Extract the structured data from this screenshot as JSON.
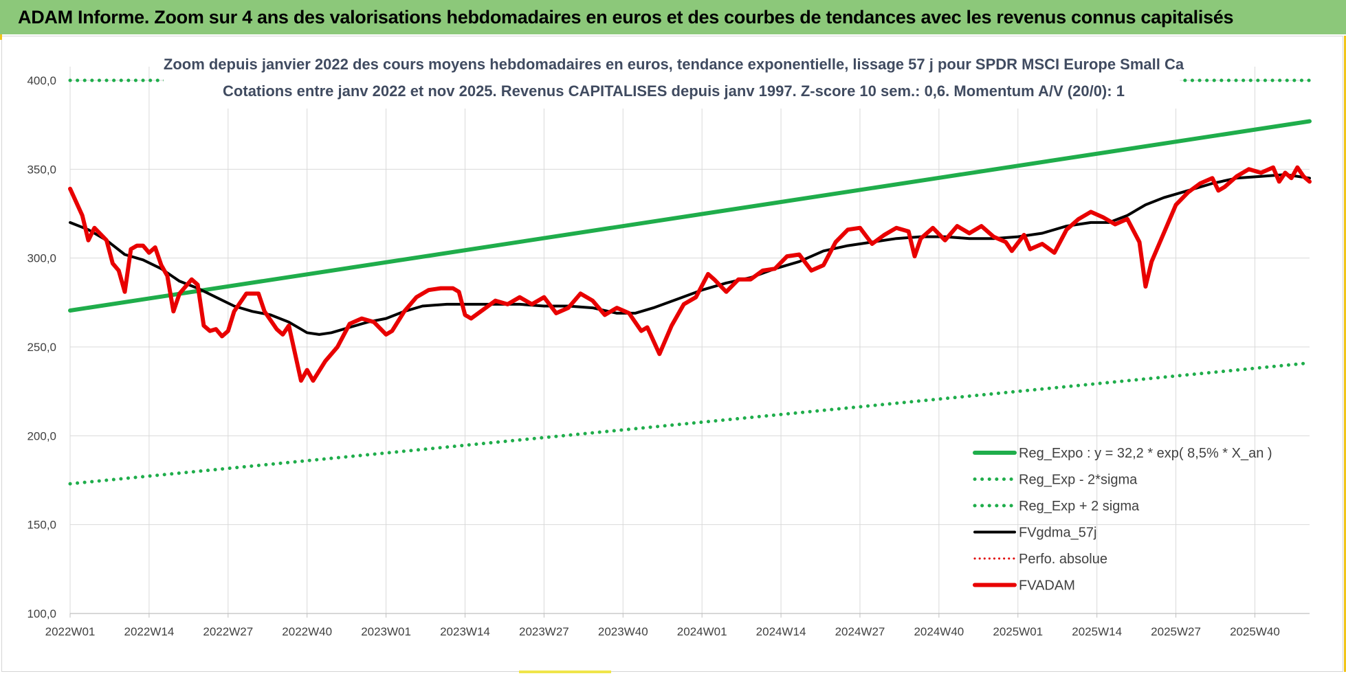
{
  "header": {
    "title": "ADAM Informe. Zoom sur 4 ans des valorisations hebdomadaires en euros et des courbes de tendances avec les revenus connus capitalisés"
  },
  "colors": {
    "banner": "#8cc87a",
    "reg_expo": "#1fad4b",
    "sigma_bands": "#1fad4b",
    "fvgdma": "#000000",
    "perfo": "#e00000",
    "fvadam": "#e80000"
  },
  "chart_data": {
    "type": "line",
    "title": "Zoom depuis janvier 2022 des cours moyens hebdomadaires en euros, tendance exponentielle, lissage 57 j pour SPDR MSCI Europe Small Ca",
    "subtitle": "Cotations entre janv 2022 et nov 2025. Revenus CAPITALISES depuis janv 1997. Z-score 10 sem.: 0,6. Momentum A/V (20/0): 1",
    "xlabel": "",
    "ylabel": "",
    "grid": true,
    "legend_position": "right",
    "ylim": [
      100,
      400
    ],
    "yticks": [
      "100,0",
      "150,0",
      "200,0",
      "250,0",
      "300,0",
      "350,0",
      "400,0"
    ],
    "x_range": [
      0,
      204
    ],
    "xticks": [
      {
        "week": 0,
        "label": "2022W01"
      },
      {
        "week": 13,
        "label": "2022W14"
      },
      {
        "week": 26,
        "label": "2022W27"
      },
      {
        "week": 39,
        "label": "2022W40"
      },
      {
        "week": 52,
        "label": "2023W01"
      },
      {
        "week": 65,
        "label": "2023W14"
      },
      {
        "week": 78,
        "label": "2023W27"
      },
      {
        "week": 91,
        "label": "2023W40"
      },
      {
        "week": 104,
        "label": "2024W01"
      },
      {
        "week": 117,
        "label": "2024W14"
      },
      {
        "week": 130,
        "label": "2024W27"
      },
      {
        "week": 143,
        "label": "2024W40"
      },
      {
        "week": 156,
        "label": "2025W01"
      },
      {
        "week": 169,
        "label": "2025W14"
      },
      {
        "week": 182,
        "label": "2025W27"
      },
      {
        "week": 195,
        "label": "2025W40"
      }
    ],
    "series": [
      {
        "name": "Reg_Expo : y = 32,2 * exp( 8,5% *  X_an )",
        "style": "solid-thick",
        "points": [
          [
            0,
            270.5
          ],
          [
            204,
            377
          ]
        ]
      },
      {
        "name": "Reg_Exp - 2*sigma",
        "style": "dotted",
        "points": [
          [
            0,
            173
          ],
          [
            204,
            241
          ]
        ]
      },
      {
        "name": "Reg_Exp + 2 sigma",
        "style": "dotted",
        "points": [
          [
            0,
            400
          ],
          [
            204,
            400
          ]
        ]
      },
      {
        "name": "FVgdma_57j",
        "style": "solid",
        "points": [
          [
            0,
            320
          ],
          [
            3,
            316
          ],
          [
            6,
            310
          ],
          [
            9,
            302
          ],
          [
            12,
            299
          ],
          [
            15,
            294
          ],
          [
            18,
            287
          ],
          [
            21,
            283
          ],
          [
            24,
            278
          ],
          [
            27,
            273
          ],
          [
            30,
            270
          ],
          [
            33,
            268
          ],
          [
            36,
            264
          ],
          [
            39,
            258
          ],
          [
            41,
            257
          ],
          [
            43,
            258
          ],
          [
            46,
            261
          ],
          [
            49,
            264
          ],
          [
            52,
            266
          ],
          [
            55,
            270
          ],
          [
            58,
            273
          ],
          [
            62,
            274
          ],
          [
            66,
            274
          ],
          [
            70,
            274
          ],
          [
            74,
            274
          ],
          [
            78,
            273
          ],
          [
            82,
            273
          ],
          [
            86,
            272
          ],
          [
            90,
            269
          ],
          [
            93,
            269
          ],
          [
            96,
            272
          ],
          [
            100,
            277
          ],
          [
            104,
            282
          ],
          [
            108,
            286
          ],
          [
            112,
            289
          ],
          [
            116,
            294
          ],
          [
            120,
            298
          ],
          [
            124,
            304
          ],
          [
            128,
            307
          ],
          [
            132,
            309
          ],
          [
            136,
            311
          ],
          [
            140,
            312
          ],
          [
            144,
            312
          ],
          [
            148,
            311
          ],
          [
            152,
            311
          ],
          [
            156,
            312
          ],
          [
            160,
            314
          ],
          [
            164,
            318
          ],
          [
            168,
            320
          ],
          [
            171,
            320
          ],
          [
            174,
            324
          ],
          [
            177,
            330
          ],
          [
            180,
            334
          ],
          [
            184,
            338
          ],
          [
            188,
            342
          ],
          [
            192,
            345
          ],
          [
            196,
            346
          ],
          [
            200,
            347
          ],
          [
            204,
            345
          ]
        ]
      },
      {
        "name": "Perfo. absolue",
        "style": "dotted",
        "points": []
      },
      {
        "name": "FVADAM",
        "style": "solid-thick",
        "points": [
          [
            0,
            339
          ],
          [
            2,
            324
          ],
          [
            3,
            310
          ],
          [
            4,
            317
          ],
          [
            6,
            310
          ],
          [
            7,
            297
          ],
          [
            8,
            293
          ],
          [
            9,
            281
          ],
          [
            10,
            305
          ],
          [
            11,
            307
          ],
          [
            12,
            307
          ],
          [
            13,
            303
          ],
          [
            14,
            306
          ],
          [
            15,
            296
          ],
          [
            16,
            290
          ],
          [
            17,
            270
          ],
          [
            18,
            280
          ],
          [
            20,
            288
          ],
          [
            21,
            285
          ],
          [
            22,
            262
          ],
          [
            23,
            259
          ],
          [
            24,
            260
          ],
          [
            25,
            256
          ],
          [
            26,
            259
          ],
          [
            27,
            270
          ],
          [
            29,
            280
          ],
          [
            31,
            280
          ],
          [
            32,
            270
          ],
          [
            34,
            260
          ],
          [
            35,
            257
          ],
          [
            36,
            262
          ],
          [
            38,
            231
          ],
          [
            39,
            237
          ],
          [
            40,
            231
          ],
          [
            42,
            242
          ],
          [
            44,
            250
          ],
          [
            46,
            263
          ],
          [
            48,
            266
          ],
          [
            50,
            264
          ],
          [
            52,
            257
          ],
          [
            53,
            259
          ],
          [
            55,
            270
          ],
          [
            57,
            278
          ],
          [
            59,
            282
          ],
          [
            61,
            283
          ],
          [
            63,
            283
          ],
          [
            64,
            281
          ],
          [
            65,
            268
          ],
          [
            66,
            266
          ],
          [
            68,
            271
          ],
          [
            70,
            276
          ],
          [
            72,
            274
          ],
          [
            74,
            278
          ],
          [
            76,
            274
          ],
          [
            78,
            278
          ],
          [
            80,
            269
          ],
          [
            82,
            272
          ],
          [
            84,
            280
          ],
          [
            86,
            276
          ],
          [
            88,
            268
          ],
          [
            90,
            272
          ],
          [
            92,
            269
          ],
          [
            94,
            259
          ],
          [
            95,
            261
          ],
          [
            97,
            246
          ],
          [
            99,
            262
          ],
          [
            101,
            274
          ],
          [
            103,
            278
          ],
          [
            105,
            291
          ],
          [
            106,
            288
          ],
          [
            108,
            281
          ],
          [
            110,
            288
          ],
          [
            112,
            288
          ],
          [
            114,
            293
          ],
          [
            116,
            294
          ],
          [
            118,
            301
          ],
          [
            120,
            302
          ],
          [
            122,
            293
          ],
          [
            124,
            296
          ],
          [
            126,
            309
          ],
          [
            128,
            316
          ],
          [
            130,
            317
          ],
          [
            132,
            308
          ],
          [
            134,
            313
          ],
          [
            136,
            317
          ],
          [
            138,
            315
          ],
          [
            139,
            301
          ],
          [
            140,
            311
          ],
          [
            142,
            317
          ],
          [
            144,
            310
          ],
          [
            146,
            318
          ],
          [
            148,
            314
          ],
          [
            150,
            318
          ],
          [
            152,
            312
          ],
          [
            154,
            309
          ],
          [
            155,
            304
          ],
          [
            157,
            313
          ],
          [
            158,
            305
          ],
          [
            160,
            308
          ],
          [
            162,
            303
          ],
          [
            164,
            316
          ],
          [
            166,
            322
          ],
          [
            168,
            326
          ],
          [
            170,
            323
          ],
          [
            172,
            319
          ],
          [
            174,
            322
          ],
          [
            176,
            309
          ],
          [
            177,
            284
          ],
          [
            178,
            298
          ],
          [
            180,
            314
          ],
          [
            182,
            330
          ],
          [
            184,
            337
          ],
          [
            186,
            342
          ],
          [
            188,
            345
          ],
          [
            189,
            338
          ],
          [
            190,
            340
          ],
          [
            192,
            346
          ],
          [
            194,
            350
          ],
          [
            196,
            348
          ],
          [
            198,
            351
          ],
          [
            199,
            343
          ],
          [
            200,
            348
          ],
          [
            201,
            345
          ],
          [
            202,
            351
          ],
          [
            203,
            346
          ],
          [
            204,
            343
          ]
        ]
      }
    ]
  }
}
